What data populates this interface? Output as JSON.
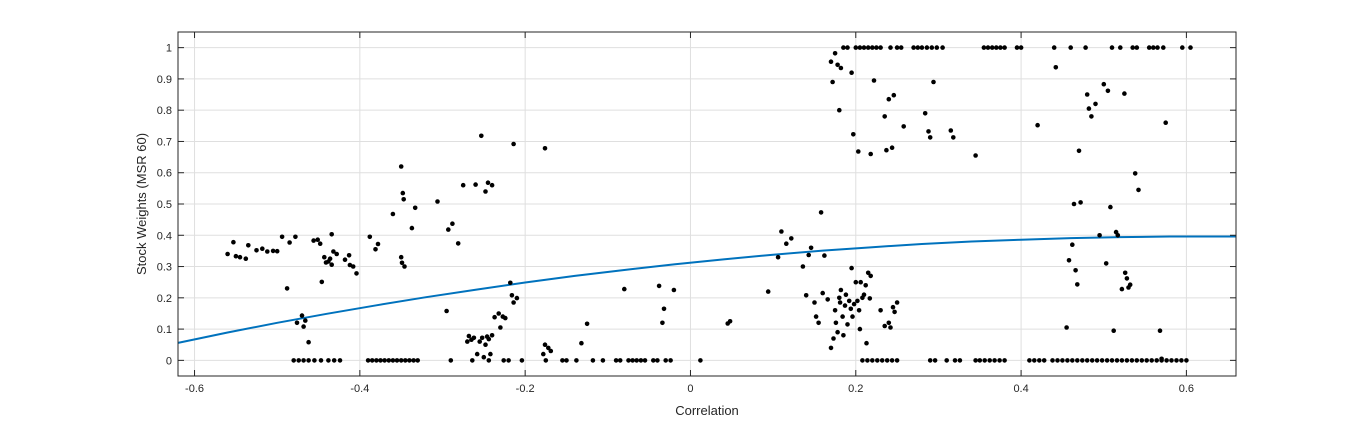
{
  "chart_data": {
    "type": "scatter",
    "xlabel": "Correlation",
    "ylabel": "Stock Weights (MSR 60)",
    "xlim": [
      -0.62,
      0.66
    ],
    "ylim": [
      -0.05,
      1.05
    ],
    "grid": true,
    "x_ticks": [
      -0.6,
      -0.4,
      -0.2,
      0,
      0.2,
      0.4,
      0.6
    ],
    "x_tick_labels": [
      "-0.6",
      "-0.4",
      "-0.2",
      "0",
      "0.2",
      "0.4",
      "0.6"
    ],
    "y_ticks": [
      0,
      0.1,
      0.2,
      0.3,
      0.4,
      0.5,
      0.6,
      0.7,
      0.8,
      0.9,
      1
    ],
    "y_tick_labels": [
      "0",
      "0.1",
      "0.2",
      "0.3",
      "0.4",
      "0.5",
      "0.6",
      "0.7",
      "0.8",
      "0.9",
      "1"
    ],
    "marker_color": "#000000",
    "trend_color": "#0072BD",
    "points": [
      [
        -0.56,
        0.34
      ],
      [
        -0.553,
        0.378
      ],
      [
        -0.55,
        0.333
      ],
      [
        -0.545,
        0.33
      ],
      [
        -0.538,
        0.325
      ],
      [
        -0.535,
        0.368
      ],
      [
        -0.525,
        0.352
      ],
      [
        -0.518,
        0.357
      ],
      [
        -0.512,
        0.348
      ],
      [
        -0.505,
        0.35
      ],
      [
        -0.5,
        0.349
      ],
      [
        -0.494,
        0.395
      ],
      [
        -0.488,
        0.23
      ],
      [
        -0.485,
        0.377
      ],
      [
        -0.478,
        0.395
      ],
      [
        -0.476,
        0.12
      ],
      [
        -0.47,
        0.143
      ],
      [
        -0.468,
        0.108
      ],
      [
        -0.466,
        0.127
      ],
      [
        -0.462,
        0.058
      ],
      [
        -0.456,
        0.383
      ],
      [
        -0.451,
        0.386
      ],
      [
        -0.446,
        0.251
      ],
      [
        -0.448,
        0.373
      ],
      [
        -0.443,
        0.33
      ],
      [
        -0.441,
        0.313
      ],
      [
        -0.436,
        0.325
      ],
      [
        -0.434,
        0.403
      ],
      [
        -0.432,
        0.348
      ],
      [
        -0.428,
        0.34
      ],
      [
        -0.438,
        0.316
      ],
      [
        -0.434,
        0.306
      ],
      [
        -0.418,
        0.322
      ],
      [
        -0.413,
        0.336
      ],
      [
        -0.412,
        0.305
      ],
      [
        -0.408,
        0.3
      ],
      [
        -0.404,
        0.278
      ],
      [
        -0.48,
        0.0
      ],
      [
        -0.474,
        0.0
      ],
      [
        -0.468,
        0.0
      ],
      [
        -0.462,
        0.0
      ],
      [
        -0.455,
        0.0
      ],
      [
        -0.447,
        0.0
      ],
      [
        -0.438,
        0.0
      ],
      [
        -0.431,
        0.0
      ],
      [
        -0.424,
        0.0
      ],
      [
        -0.39,
        0.0
      ],
      [
        -0.385,
        0.0
      ],
      [
        -0.38,
        0.0
      ],
      [
        -0.375,
        0.0
      ],
      [
        -0.37,
        0.0
      ],
      [
        -0.365,
        0.0
      ],
      [
        -0.36,
        0.0
      ],
      [
        -0.355,
        0.0
      ],
      [
        -0.35,
        0.0
      ],
      [
        -0.345,
        0.0
      ],
      [
        -0.34,
        0.0
      ],
      [
        -0.335,
        0.0
      ],
      [
        -0.33,
        0.0
      ],
      [
        -0.29,
        0.0
      ],
      [
        -0.264,
        0.0
      ],
      [
        -0.244,
        0.0
      ],
      [
        -0.226,
        0.0
      ],
      [
        -0.204,
        0.0
      ],
      [
        -0.388,
        0.395
      ],
      [
        -0.381,
        0.355
      ],
      [
        -0.378,
        0.372
      ],
      [
        -0.36,
        0.468
      ],
      [
        -0.35,
        0.33
      ],
      [
        -0.349,
        0.312
      ],
      [
        -0.346,
        0.3
      ],
      [
        -0.35,
        0.62
      ],
      [
        -0.348,
        0.535
      ],
      [
        -0.347,
        0.515
      ],
      [
        -0.337,
        0.423
      ],
      [
        -0.333,
        0.488
      ],
      [
        -0.306,
        0.508
      ],
      [
        -0.295,
        0.158
      ],
      [
        -0.293,
        0.418
      ],
      [
        -0.288,
        0.437
      ],
      [
        -0.281,
        0.374
      ],
      [
        -0.275,
        0.56
      ],
      [
        -0.26,
        0.562
      ],
      [
        -0.253,
        0.718
      ],
      [
        -0.248,
        0.54
      ],
      [
        -0.245,
        0.568
      ],
      [
        -0.24,
        0.56
      ],
      [
        -0.214,
        0.692
      ],
      [
        -0.176,
        0.678
      ],
      [
        -0.27,
        0.06
      ],
      [
        -0.268,
        0.078
      ],
      [
        -0.265,
        0.066
      ],
      [
        -0.262,
        0.072
      ],
      [
        -0.258,
        0.02
      ],
      [
        -0.255,
        0.06
      ],
      [
        -0.252,
        0.072
      ],
      [
        -0.25,
        0.01
      ],
      [
        -0.248,
        0.05
      ],
      [
        -0.246,
        0.076
      ],
      [
        -0.244,
        0.068
      ],
      [
        -0.242,
        0.02
      ],
      [
        -0.24,
        0.08
      ],
      [
        -0.237,
        0.138
      ],
      [
        -0.232,
        0.15
      ],
      [
        -0.23,
        0.105
      ],
      [
        -0.227,
        0.14
      ],
      [
        -0.224,
        0.135
      ],
      [
        -0.22,
        0.0
      ],
      [
        -0.218,
        0.248
      ],
      [
        -0.216,
        0.208
      ],
      [
        -0.214,
        0.185
      ],
      [
        -0.21,
        0.199
      ],
      [
        -0.178,
        0.02
      ],
      [
        -0.176,
        0.05
      ],
      [
        -0.175,
        0.0
      ],
      [
        -0.172,
        0.04
      ],
      [
        -0.169,
        0.03
      ],
      [
        -0.155,
        0.0
      ],
      [
        -0.15,
        0.0
      ],
      [
        -0.138,
        0.0
      ],
      [
        -0.132,
        0.055
      ],
      [
        -0.125,
        0.117
      ],
      [
        -0.118,
        0.0
      ],
      [
        -0.106,
        0.0
      ],
      [
        -0.09,
        0.0
      ],
      [
        -0.085,
        0.0
      ],
      [
        -0.08,
        0.228
      ],
      [
        -0.075,
        0.0
      ],
      [
        -0.07,
        0.0
      ],
      [
        -0.065,
        0.0
      ],
      [
        -0.06,
        0.0
      ],
      [
        -0.055,
        0.0
      ],
      [
        -0.045,
        0.0
      ],
      [
        -0.04,
        0.0
      ],
      [
        -0.038,
        0.238
      ],
      [
        -0.034,
        0.12
      ],
      [
        -0.032,
        0.165
      ],
      [
        -0.03,
        0.0
      ],
      [
        -0.024,
        0.0
      ],
      [
        -0.02,
        0.225
      ],
      [
        0.012,
        0.0
      ],
      [
        0.045,
        0.118
      ],
      [
        0.048,
        0.125
      ],
      [
        0.094,
        0.22
      ],
      [
        0.106,
        0.33
      ],
      [
        0.11,
        0.412
      ],
      [
        0.116,
        0.373
      ],
      [
        0.122,
        0.39
      ],
      [
        0.136,
        0.3
      ],
      [
        0.14,
        0.208
      ],
      [
        0.143,
        0.337
      ],
      [
        0.146,
        0.36
      ],
      [
        0.15,
        0.185
      ],
      [
        0.152,
        0.14
      ],
      [
        0.155,
        0.12
      ],
      [
        0.158,
        0.473
      ],
      [
        0.16,
        0.215
      ],
      [
        0.162,
        0.335
      ],
      [
        0.166,
        0.195
      ],
      [
        0.17,
        0.04
      ],
      [
        0.173,
        0.07
      ],
      [
        0.175,
        0.16
      ],
      [
        0.176,
        0.12
      ],
      [
        0.178,
        0.09
      ],
      [
        0.18,
        0.2
      ],
      [
        0.181,
        0.185
      ],
      [
        0.182,
        0.225
      ],
      [
        0.184,
        0.14
      ],
      [
        0.185,
        0.08
      ],
      [
        0.187,
        0.175
      ],
      [
        0.188,
        0.21
      ],
      [
        0.19,
        0.115
      ],
      [
        0.192,
        0.19
      ],
      [
        0.194,
        0.165
      ],
      [
        0.195,
        0.295
      ],
      [
        0.196,
        0.14
      ],
      [
        0.198,
        0.18
      ],
      [
        0.2,
        0.25
      ],
      [
        0.202,
        0.19
      ],
      [
        0.204,
        0.16
      ],
      [
        0.205,
        0.1
      ],
      [
        0.206,
        0.25
      ],
      [
        0.208,
        0.2
      ],
      [
        0.21,
        0.21
      ],
      [
        0.212,
        0.24
      ],
      [
        0.213,
        0.055
      ],
      [
        0.215,
        0.28
      ],
      [
        0.217,
        0.198
      ],
      [
        0.218,
        0.27
      ],
      [
        0.23,
        0.16
      ],
      [
        0.235,
        0.11
      ],
      [
        0.24,
        0.12
      ],
      [
        0.242,
        0.105
      ],
      [
        0.245,
        0.17
      ],
      [
        0.247,
        0.155
      ],
      [
        0.25,
        0.185
      ],
      [
        0.208,
        0.0
      ],
      [
        0.214,
        0.0
      ],
      [
        0.22,
        0.0
      ],
      [
        0.226,
        0.0
      ],
      [
        0.232,
        0.0
      ],
      [
        0.238,
        0.0
      ],
      [
        0.244,
        0.0
      ],
      [
        0.25,
        0.0
      ],
      [
        0.29,
        0.0
      ],
      [
        0.296,
        0.0
      ],
      [
        0.31,
        0.0
      ],
      [
        0.32,
        0.0
      ],
      [
        0.326,
        0.0
      ],
      [
        0.345,
        0.0
      ],
      [
        0.35,
        0.0
      ],
      [
        0.356,
        0.0
      ],
      [
        0.362,
        0.0
      ],
      [
        0.368,
        0.0
      ],
      [
        0.374,
        0.0
      ],
      [
        0.38,
        0.0
      ],
      [
        0.41,
        0.0
      ],
      [
        0.416,
        0.0
      ],
      [
        0.422,
        0.0
      ],
      [
        0.428,
        0.0
      ],
      [
        0.17,
        0.955
      ],
      [
        0.172,
        0.89
      ],
      [
        0.175,
        0.982
      ],
      [
        0.178,
        0.945
      ],
      [
        0.18,
        0.8
      ],
      [
        0.182,
        0.935
      ],
      [
        0.185,
        1.0
      ],
      [
        0.19,
        1.0
      ],
      [
        0.195,
        0.92
      ],
      [
        0.197,
        0.723
      ],
      [
        0.2,
        1.0
      ],
      [
        0.203,
        0.668
      ],
      [
        0.205,
        1.0
      ],
      [
        0.21,
        1.0
      ],
      [
        0.215,
        1.0
      ],
      [
        0.218,
        0.66
      ],
      [
        0.22,
        1.0
      ],
      [
        0.222,
        0.895
      ],
      [
        0.225,
        1.0
      ],
      [
        0.23,
        1.0
      ],
      [
        0.235,
        0.78
      ],
      [
        0.237,
        0.672
      ],
      [
        0.24,
        0.835
      ],
      [
        0.242,
        1.0
      ],
      [
        0.244,
        0.68
      ],
      [
        0.246,
        0.848
      ],
      [
        0.25,
        1.0
      ],
      [
        0.255,
        1.0
      ],
      [
        0.258,
        0.748
      ],
      [
        0.27,
        1.0
      ],
      [
        0.275,
        1.0
      ],
      [
        0.28,
        1.0
      ],
      [
        0.284,
        0.79
      ],
      [
        0.286,
        1.0
      ],
      [
        0.288,
        0.732
      ],
      [
        0.29,
        0.713
      ],
      [
        0.292,
        1.0
      ],
      [
        0.294,
        0.89
      ],
      [
        0.298,
        1.0
      ],
      [
        0.305,
        1.0
      ],
      [
        0.315,
        0.735
      ],
      [
        0.318,
        0.713
      ],
      [
        0.345,
        0.655
      ],
      [
        0.355,
        1.0
      ],
      [
        0.36,
        1.0
      ],
      [
        0.365,
        1.0
      ],
      [
        0.37,
        1.0
      ],
      [
        0.375,
        1.0
      ],
      [
        0.38,
        1.0
      ],
      [
        0.395,
        1.0
      ],
      [
        0.4,
        1.0
      ],
      [
        0.438,
        0.0
      ],
      [
        0.444,
        0.0
      ],
      [
        0.45,
        0.0
      ],
      [
        0.456,
        0.0
      ],
      [
        0.462,
        0.0
      ],
      [
        0.468,
        0.0
      ],
      [
        0.474,
        0.0
      ],
      [
        0.48,
        0.0
      ],
      [
        0.486,
        0.0
      ],
      [
        0.492,
        0.0
      ],
      [
        0.498,
        0.0
      ],
      [
        0.504,
        0.0
      ],
      [
        0.51,
        0.0
      ],
      [
        0.516,
        0.0
      ],
      [
        0.522,
        0.0
      ],
      [
        0.528,
        0.0
      ],
      [
        0.534,
        0.0
      ],
      [
        0.54,
        0.0
      ],
      [
        0.546,
        0.0
      ],
      [
        0.552,
        0.0
      ],
      [
        0.558,
        0.0
      ],
      [
        0.564,
        0.0
      ],
      [
        0.57,
        0.0
      ],
      [
        0.576,
        0.0
      ],
      [
        0.582,
        0.0
      ],
      [
        0.588,
        0.0
      ],
      [
        0.594,
        0.0
      ],
      [
        0.6,
        0.0
      ],
      [
        0.42,
        0.752
      ],
      [
        0.44,
        1.0
      ],
      [
        0.442,
        0.937
      ],
      [
        0.455,
        0.105
      ],
      [
        0.458,
        0.32
      ],
      [
        0.46,
        1.0
      ],
      [
        0.462,
        0.37
      ],
      [
        0.464,
        0.5
      ],
      [
        0.466,
        0.288
      ],
      [
        0.468,
        0.243
      ],
      [
        0.47,
        0.67
      ],
      [
        0.472,
        0.505
      ],
      [
        0.478,
        1.0
      ],
      [
        0.48,
        0.85
      ],
      [
        0.482,
        0.805
      ],
      [
        0.485,
        0.78
      ],
      [
        0.49,
        0.82
      ],
      [
        0.495,
        0.4
      ],
      [
        0.5,
        0.883
      ],
      [
        0.503,
        0.31
      ],
      [
        0.505,
        0.862
      ],
      [
        0.508,
        0.49
      ],
      [
        0.51,
        1.0
      ],
      [
        0.512,
        0.095
      ],
      [
        0.515,
        0.41
      ],
      [
        0.517,
        0.4
      ],
      [
        0.52,
        1.0
      ],
      [
        0.522,
        0.228
      ],
      [
        0.525,
        0.853
      ],
      [
        0.526,
        0.28
      ],
      [
        0.528,
        0.262
      ],
      [
        0.53,
        0.233
      ],
      [
        0.532,
        0.242
      ],
      [
        0.535,
        1.0
      ],
      [
        0.538,
        0.598
      ],
      [
        0.54,
        1.0
      ],
      [
        0.542,
        0.545
      ],
      [
        0.555,
        1.0
      ],
      [
        0.56,
        1.0
      ],
      [
        0.565,
        1.0
      ],
      [
        0.568,
        0.095
      ],
      [
        0.57,
        0.005
      ],
      [
        0.572,
        1.0
      ],
      [
        0.575,
        0.76
      ],
      [
        0.595,
        1.0
      ],
      [
        0.605,
        1.0
      ]
    ],
    "trend_curve": {
      "x": [
        -0.62,
        -0.56,
        -0.5,
        -0.44,
        -0.38,
        -0.32,
        -0.26,
        -0.2,
        -0.14,
        -0.08,
        -0.02,
        0.04,
        0.1,
        0.16,
        0.22,
        0.28,
        0.34,
        0.4,
        0.46,
        0.52,
        0.58,
        0.66
      ],
      "y": [
        0.056,
        0.089,
        0.12,
        0.149,
        0.176,
        0.202,
        0.226,
        0.249,
        0.27,
        0.289,
        0.307,
        0.323,
        0.338,
        0.351,
        0.362,
        0.372,
        0.38,
        0.386,
        0.391,
        0.394,
        0.396,
        0.396
      ]
    }
  }
}
